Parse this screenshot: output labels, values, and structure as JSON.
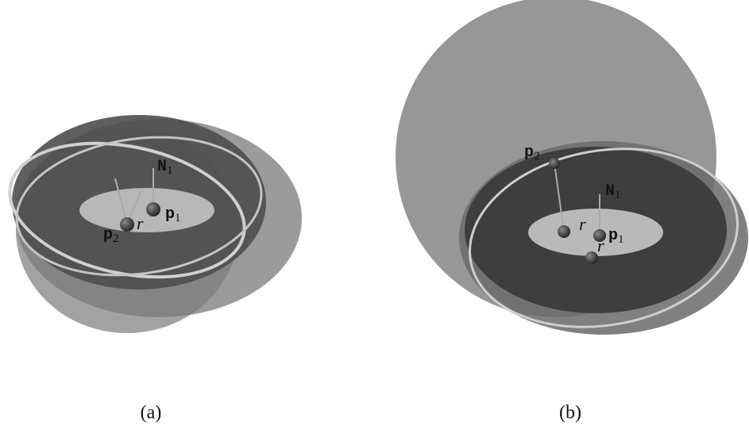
{
  "panels": [
    {
      "caption": "(a)",
      "labels": [
        {
          "base": "N",
          "sub": "1"
        },
        {
          "base": "p",
          "sub": "1"
        },
        {
          "base": "p",
          "sub": "2"
        },
        {
          "base": "r"
        }
      ]
    },
    {
      "caption": "(b)",
      "labels": [
        {
          "base": "p",
          "sub": "2"
        },
        {
          "base": "N",
          "sub": "1"
        },
        {
          "base": "p",
          "sub": "1"
        },
        {
          "base": "r"
        },
        {
          "base": "r"
        }
      ]
    }
  ]
}
